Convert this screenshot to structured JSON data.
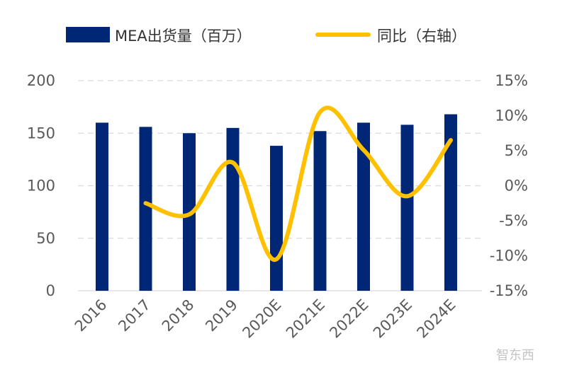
{
  "chart_data": {
    "type": "bar+line",
    "categories": [
      "2016",
      "2017",
      "2018",
      "2019",
      "2020E",
      "2021E",
      "2022E",
      "2023E",
      "2024E"
    ],
    "series": [
      {
        "name": "MEA出货量（百万）",
        "type": "bar",
        "axis": "left",
        "color": "#002776",
        "values": [
          160,
          156,
          150,
          155,
          138,
          152,
          160,
          158,
          168
        ]
      },
      {
        "name": "同比（右轴）",
        "type": "line",
        "axis": "right",
        "color": "#FFC000",
        "smooth": true,
        "values": [
          null,
          -2.5,
          -4.1,
          3.3,
          -10.5,
          10.5,
          5.1,
          -1.5,
          6.5
        ]
      }
    ],
    "y_left": {
      "range": [
        0,
        200
      ],
      "ticks": [
        "0",
        "50",
        "100",
        "150",
        "200"
      ]
    },
    "y_right": {
      "range": [
        -15,
        15
      ],
      "ticks": [
        "-15%",
        "-10%",
        "-5%",
        "0%",
        "5%",
        "10%",
        "15%"
      ]
    },
    "grid": "horizontal dashed",
    "legend": "top"
  },
  "watermark": "智东西"
}
